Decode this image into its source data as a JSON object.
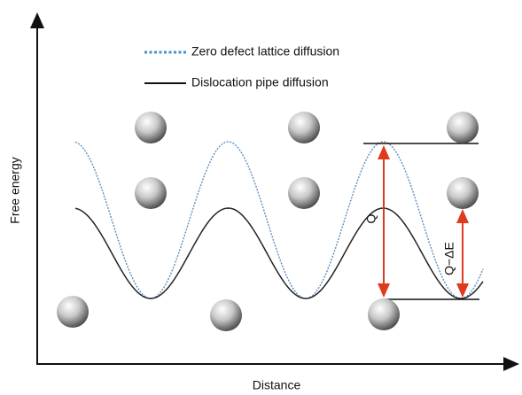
{
  "axes": {
    "y_label": "Free energy",
    "x_label": "Distance"
  },
  "legend": [
    "Zero defect lattice diffusion",
    "Dislocation pipe diffusion"
  ],
  "annotations": {
    "q": "Q",
    "q_minus_delta_e": "Q−ΔE"
  }
}
